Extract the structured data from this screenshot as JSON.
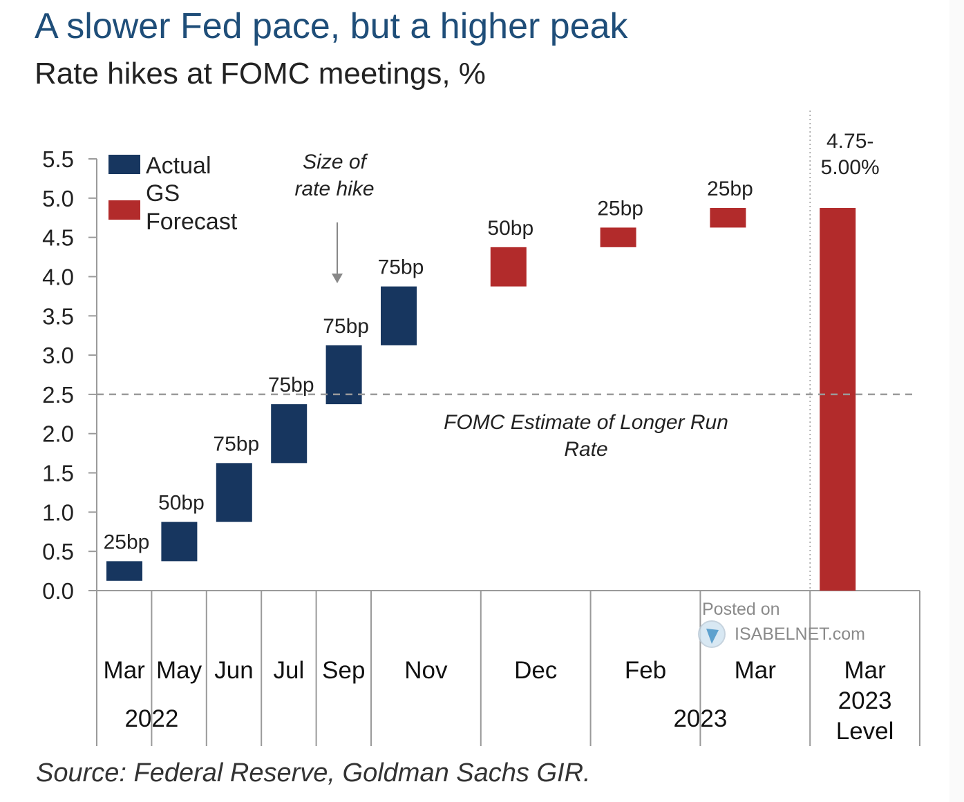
{
  "colors": {
    "actual": "#17365f",
    "forecast": "#b22b2b",
    "title": "#1f4e79",
    "axis": "#9a9a9a",
    "reference_line": "#9a9a9a"
  },
  "chart_data": {
    "type": "bar",
    "subtype": "floating-waterfall",
    "title": "A slower Fed pace, but a higher peak",
    "subtitle": "Rate hikes at FOMC meetings, %",
    "xlabel": "",
    "ylabel": "",
    "ylim": [
      0,
      5.5
    ],
    "yticks": [
      "0.0",
      "0.5",
      "1.0",
      "1.5",
      "2.0",
      "2.5",
      "3.0",
      "3.5",
      "4.0",
      "4.5",
      "5.0",
      "5.5"
    ],
    "ytick_values": [
      0,
      0.5,
      1,
      1.5,
      2,
      2.5,
      3,
      3.5,
      4,
      4.5,
      5,
      5.5
    ],
    "grid": false,
    "legend": {
      "placement": "top-left",
      "entries": [
        {
          "name": "Actual",
          "lines": [
            "Actual"
          ],
          "series": "actual"
        },
        {
          "name": "GS Forecast",
          "lines": [
            "GS",
            "Forecast"
          ],
          "series": "forecast"
        }
      ]
    },
    "categories": [
      "Mar",
      "May",
      "Jun",
      "Jul",
      "Sep",
      "Nov",
      "Dec",
      "Feb",
      "Mar",
      "Mar 2023 Level"
    ],
    "category_label_lines": [
      [
        "Mar"
      ],
      [
        "May"
      ],
      [
        "Jun"
      ],
      [
        "Jul"
      ],
      [
        "Sep"
      ],
      [
        "Nov"
      ],
      [
        "Dec"
      ],
      [
        "Feb"
      ],
      [
        "Mar"
      ],
      [
        "Mar",
        "2023",
        "Level"
      ]
    ],
    "year_labels": [
      "2022",
      "2023"
    ],
    "bars": [
      {
        "category": "Mar",
        "year": 2022,
        "series": "actual",
        "start": 0.125,
        "end": 0.375,
        "label": "25bp"
      },
      {
        "category": "May",
        "year": 2022,
        "series": "actual",
        "start": 0.375,
        "end": 0.875,
        "label": "50bp"
      },
      {
        "category": "Jun",
        "year": 2022,
        "series": "actual",
        "start": 0.875,
        "end": 1.625,
        "label": "75bp"
      },
      {
        "category": "Jul",
        "year": 2022,
        "series": "actual",
        "start": 1.625,
        "end": 2.375,
        "label": "75bp"
      },
      {
        "category": "Sep",
        "year": 2022,
        "series": "actual",
        "start": 2.375,
        "end": 3.125,
        "label": "75bp"
      },
      {
        "category": "Nov",
        "year": 2022,
        "series": "actual",
        "start": 3.125,
        "end": 3.875,
        "label": "75bp"
      },
      {
        "category": "Dec",
        "year": 2022,
        "series": "forecast",
        "start": 3.875,
        "end": 4.375,
        "label": "50bp"
      },
      {
        "category": "Feb",
        "year": 2023,
        "series": "forecast",
        "start": 4.375,
        "end": 4.625,
        "label": "25bp"
      },
      {
        "category": "Mar",
        "year": 2023,
        "series": "forecast",
        "start": 4.625,
        "end": 4.875,
        "label": "25bp"
      },
      {
        "category": "Mar 2023 Level",
        "year": 2023,
        "series": "forecast",
        "start": 0,
        "end": 4.875,
        "label": "4.75-5.00%",
        "label_lines": [
          "4.75-",
          "5.00%"
        ]
      }
    ],
    "reference_line": {
      "y": 2.5,
      "style": "dashed",
      "label_lines": [
        "FOMC Estimate of Longer Run",
        "Rate"
      ]
    },
    "annotations": [
      {
        "text_lines": [
          "Size of",
          "rate hike"
        ],
        "arrow": "down"
      }
    ],
    "watermark": {
      "lines": [
        "Posted on",
        "ISABELNET.com"
      ]
    },
    "source": "Source: Federal Reserve, Goldman Sachs GIR."
  }
}
